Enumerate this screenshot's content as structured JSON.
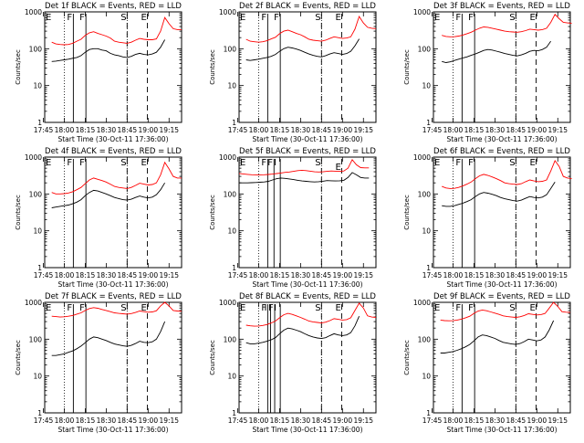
{
  "common": {
    "xtick_labels": [
      "17:45",
      "18:00",
      "18:15",
      "18:30",
      "18:45",
      "19:00",
      "19:15"
    ],
    "xtick_values_min": [
      -0.97,
      14.03,
      29.03,
      44.03,
      59.03,
      74.03,
      89.03
    ],
    "ytick_labels": [
      "1",
      "10",
      "100",
      "1000"
    ],
    "ytick_values": [
      1,
      10,
      100,
      1000
    ],
    "xlabel": "Start Time (30-Oct-11 17:36:00)",
    "ylabel": "Counts/sec",
    "xlim_min": [
      0,
      98
    ],
    "ylim": [
      1,
      1000
    ],
    "yscale": "log",
    "colors": {
      "events": "#000000",
      "lld": "#ff0000",
      "axes": "#000000"
    }
  },
  "chart_data": [
    {
      "type": "line",
      "title": "Det 1f BLACK = Events, RED = LLD",
      "x_start_min": 5,
      "series": [
        {
          "name": "Events",
          "color": "#000000",
          "values": [
            45,
            46,
            48,
            50,
            52,
            55,
            58,
            65,
            80,
            95,
            100,
            100,
            92,
            88,
            75,
            68,
            65,
            60,
            58,
            62,
            70,
            75,
            70,
            68,
            72,
            80,
            110,
            175
          ]
        },
        {
          "name": "LLD",
          "color": "#ff0000",
          "values": [
            150,
            135,
            130,
            128,
            130,
            140,
            160,
            180,
            230,
            270,
            290,
            260,
            240,
            220,
            195,
            160,
            150,
            145,
            140,
            150,
            170,
            190,
            180,
            175,
            175,
            185,
            300,
            700,
            480,
            350,
            330,
            330
          ]
        }
      ],
      "vlines": [
        {
          "label": "F",
          "x_min": 20.5,
          "style": "solid",
          "dy": 0
        },
        {
          "label": "F",
          "x_min": 29.5,
          "style": "solid",
          "dy": 0
        },
        {
          "label": "S",
          "x_min": 59,
          "style": "dashed",
          "dy": 0
        },
        {
          "label": "E",
          "x_min": 73.5,
          "style": "dashed",
          "dy": 0
        }
      ]
    },
    {
      "type": "line",
      "title": "Det 2f BLACK = Events, RED = LLD",
      "x_start_min": 5,
      "series": [
        {
          "name": "Events",
          "color": "#000000",
          "values": [
            50,
            48,
            50,
            52,
            55,
            58,
            62,
            70,
            85,
            100,
            110,
            105,
            98,
            90,
            80,
            72,
            66,
            62,
            60,
            65,
            72,
            78,
            74,
            70,
            74,
            85,
            120,
            185
          ]
        },
        {
          "name": "LLD",
          "color": "#ff0000",
          "values": [
            180,
            160,
            155,
            150,
            155,
            165,
            185,
            205,
            255,
            300,
            320,
            290,
            260,
            240,
            210,
            180,
            170,
            165,
            160,
            170,
            190,
            210,
            200,
            190,
            195,
            210,
            340,
            750,
            500,
            380,
            360,
            350
          ]
        }
      ],
      "vlines": [
        {
          "label": "F",
          "x_min": 20.5,
          "style": "solid",
          "dy": 0
        },
        {
          "label": "F",
          "x_min": 29.5,
          "style": "solid",
          "dy": 0
        },
        {
          "label": "S",
          "x_min": 59,
          "style": "dashed",
          "dy": 0
        },
        {
          "label": "E",
          "x_min": 73.5,
          "style": "dashed",
          "dy": 0
        }
      ]
    },
    {
      "type": "line",
      "title": "Det 3f BLACK = Events, RED = LLD",
      "x_start_min": 6,
      "series": [
        {
          "name": "Events",
          "color": "#000000",
          "values": [
            45,
            42,
            44,
            48,
            52,
            56,
            60,
            66,
            72,
            80,
            90,
            95,
            92,
            86,
            80,
            74,
            70,
            66,
            64,
            68,
            75,
            85,
            90,
            88,
            95,
            110,
            160
          ]
        },
        {
          "name": "LLD",
          "color": "#ff0000",
          "values": [
            230,
            215,
            210,
            212,
            220,
            235,
            255,
            280,
            320,
            360,
            390,
            380,
            360,
            340,
            320,
            300,
            290,
            285,
            280,
            290,
            310,
            340,
            330,
            320,
            330,
            360,
            520,
            850,
            650,
            520,
            500,
            490
          ]
        }
      ],
      "vlines": [
        {
          "label": "F",
          "x_min": 20.5,
          "style": "solid",
          "dy": 0
        },
        {
          "label": "F",
          "x_min": 29.5,
          "style": "solid",
          "dy": 0
        },
        {
          "label": "S",
          "x_min": 59,
          "style": "dashed",
          "dy": 0
        },
        {
          "label": "E",
          "x_min": 73.5,
          "style": "dashed",
          "dy": 0
        }
      ]
    },
    {
      "type": "line",
      "title": "Det 4f BLACK = Events, RED = LLD",
      "x_start_min": 5,
      "series": [
        {
          "name": "Events",
          "color": "#000000",
          "values": [
            42,
            44,
            46,
            48,
            50,
            54,
            60,
            70,
            90,
            110,
            125,
            120,
            110,
            100,
            90,
            80,
            75,
            70,
            68,
            72,
            80,
            88,
            82,
            78,
            82,
            95,
            130,
            200
          ]
        },
        {
          "name": "LLD",
          "color": "#ff0000",
          "values": [
            110,
            100,
            100,
            102,
            106,
            115,
            130,
            150,
            190,
            240,
            270,
            250,
            230,
            210,
            185,
            160,
            150,
            145,
            140,
            150,
            170,
            195,
            185,
            175,
            180,
            200,
            330,
            720,
            480,
            300,
            270,
            270
          ]
        }
      ],
      "vlines": [
        {
          "label": "F",
          "x_min": 20.5,
          "style": "solid",
          "dy": 0
        },
        {
          "label": "F",
          "x_min": 29.5,
          "style": "solid",
          "dy": 0
        },
        {
          "label": "S",
          "x_min": 59,
          "style": "dashed",
          "dy": 0
        },
        {
          "label": "E",
          "x_min": 73.5,
          "style": "dashed",
          "dy": 0
        }
      ]
    },
    {
      "type": "line",
      "title": "Det 5f BLACK = Events, RED = LLD",
      "x_start_min": 0,
      "series": [
        {
          "name": "Events",
          "color": "#000000",
          "values": [
            200,
            200,
            200,
            202,
            205,
            208,
            212,
            220,
            240,
            260,
            270,
            265,
            255,
            245,
            235,
            225,
            220,
            215,
            212,
            215,
            222,
            230,
            228,
            225,
            228,
            235,
            280,
            380,
            330,
            280,
            270,
            270
          ]
        },
        {
          "name": "LLD",
          "color": "#ff0000",
          "values": [
            360,
            350,
            340,
            332,
            330,
            330,
            332,
            338,
            345,
            358,
            370,
            385,
            395,
            410,
            430,
            440,
            430,
            415,
            400,
            395,
            400,
            410,
            420,
            415,
            410,
            420,
            500,
            850,
            620,
            520,
            510,
            510
          ]
        }
      ],
      "vlines": [
        {
          "label": "F",
          "x_min": 20.5,
          "style": "solid",
          "dy": 0
        },
        {
          "label": "F",
          "x_min": 25,
          "style": "solid",
          "dy": 0
        },
        {
          "label": "I",
          "x_min": 29.5,
          "style": "solid",
          "dy": 0
        },
        {
          "label": "S",
          "x_min": 59,
          "style": "dashed",
          "dy": 0
        },
        {
          "label": "E",
          "x_min": 73.5,
          "style": "dashed",
          "dy": 5
        }
      ]
    },
    {
      "type": "line",
      "title": "Det 6f BLACK = Events, RED = LLD",
      "x_start_min": 6,
      "series": [
        {
          "name": "Events",
          "color": "#000000",
          "values": [
            48,
            46,
            46,
            48,
            52,
            56,
            62,
            70,
            85,
            100,
            110,
            105,
            98,
            90,
            80,
            74,
            70,
            66,
            64,
            68,
            76,
            85,
            80,
            78,
            82,
            95,
            140,
            210
          ]
        },
        {
          "name": "LLD",
          "color": "#ff0000",
          "values": [
            160,
            145,
            140,
            142,
            150,
            165,
            185,
            210,
            260,
            310,
            340,
            320,
            290,
            260,
            230,
            200,
            190,
            185,
            180,
            190,
            215,
            240,
            225,
            215,
            220,
            240,
            420,
            800,
            560,
            300,
            270,
            260
          ]
        }
      ],
      "vlines": [
        {
          "label": "F",
          "x_min": 20.5,
          "style": "solid",
          "dy": 0
        },
        {
          "label": "F",
          "x_min": 29.5,
          "style": "solid",
          "dy": 0
        },
        {
          "label": "S",
          "x_min": 59,
          "style": "dashed",
          "dy": 0
        },
        {
          "label": "E",
          "x_min": 73.5,
          "style": "dashed",
          "dy": 0
        }
      ]
    },
    {
      "type": "line",
      "title": "Det 7f BLACK = Events, RED = LLD",
      "x_start_min": 5,
      "series": [
        {
          "name": "Events",
          "color": "#000000",
          "values": [
            36,
            36,
            38,
            40,
            44,
            48,
            55,
            65,
            80,
            100,
            115,
            110,
            100,
            92,
            82,
            74,
            70,
            66,
            64,
            68,
            76,
            88,
            82,
            80,
            85,
            100,
            160,
            300
          ]
        },
        {
          "name": "LLD",
          "color": "#ff0000",
          "values": [
            420,
            410,
            400,
            405,
            420,
            440,
            480,
            520,
            600,
            680,
            720,
            690,
            640,
            600,
            560,
            520,
            500,
            490,
            480,
            495,
            530,
            580,
            560,
            540,
            550,
            590,
            800,
            1000,
            800,
            600,
            580,
            570
          ]
        }
      ],
      "vlines": [
        {
          "label": "F",
          "x_min": 20.5,
          "style": "solid",
          "dy": 0
        },
        {
          "label": "F",
          "x_min": 29.5,
          "style": "solid",
          "dy": 0
        },
        {
          "label": "S",
          "x_min": 59,
          "style": "dashed",
          "dy": 0
        },
        {
          "label": "E",
          "x_min": 73.5,
          "style": "dashed",
          "dy": 0
        }
      ]
    },
    {
      "type": "line",
      "title": "Det 8f BLACK = Events, RED = LLD",
      "x_start_min": 5,
      "series": [
        {
          "name": "Events",
          "color": "#000000",
          "values": [
            80,
            75,
            75,
            78,
            82,
            88,
            96,
            110,
            140,
            175,
            200,
            190,
            175,
            160,
            140,
            125,
            115,
            108,
            104,
            110,
            125,
            140,
            130,
            125,
            130,
            150,
            230,
            420
          ]
        },
        {
          "name": "LLD",
          "color": "#ff0000",
          "values": [
            240,
            230,
            225,
            228,
            236,
            250,
            275,
            310,
            380,
            460,
            500,
            470,
            430,
            390,
            350,
            310,
            295,
            285,
            275,
            290,
            320,
            360,
            345,
            330,
            340,
            380,
            600,
            950,
            700,
            430,
            400,
            390
          ]
        }
      ],
      "vlines": [
        {
          "label": "F",
          "x_min": 20.5,
          "style": "solid",
          "dy": 0
        },
        {
          "label": "I",
          "x_min": 22.5,
          "style": "solid",
          "dy": 0
        },
        {
          "label": "F",
          "x_min": 25.5,
          "style": "solid",
          "dy": 0
        },
        {
          "label": "I",
          "x_min": 29.5,
          "style": "solid",
          "dy": 0
        },
        {
          "label": "S",
          "x_min": 59,
          "style": "dashed",
          "dy": 0
        },
        {
          "label": "E",
          "x_min": 73.5,
          "style": "dashed",
          "dy": 0
        }
      ]
    },
    {
      "type": "line",
      "title": "Det 9f BLACK = Events, RED = LLD",
      "x_start_min": 5,
      "series": [
        {
          "name": "Events",
          "color": "#000000",
          "values": [
            42,
            42,
            44,
            46,
            50,
            55,
            62,
            72,
            90,
            115,
            130,
            125,
            115,
            105,
            92,
            82,
            78,
            74,
            72,
            76,
            86,
            100,
            95,
            90,
            95,
            115,
            180,
            320
          ]
        },
        {
          "name": "LLD",
          "color": "#ff0000",
          "values": [
            330,
            320,
            315,
            318,
            330,
            350,
            380,
            420,
            500,
            580,
            620,
            590,
            550,
            510,
            470,
            430,
            410,
            400,
            390,
            405,
            440,
            490,
            470,
            455,
            465,
            500,
            700,
            1000,
            780,
            560,
            540,
            530
          ]
        }
      ],
      "vlines": [
        {
          "label": "F",
          "x_min": 20.5,
          "style": "solid",
          "dy": 0
        },
        {
          "label": "F",
          "x_min": 29.5,
          "style": "solid",
          "dy": 0
        },
        {
          "label": "S",
          "x_min": 59,
          "style": "dashed",
          "dy": 0
        },
        {
          "label": "E",
          "x_min": 73.5,
          "style": "dashed",
          "dy": 0
        }
      ]
    }
  ]
}
